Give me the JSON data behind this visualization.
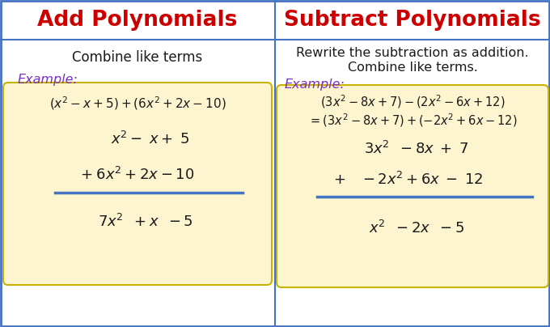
{
  "bg_color": "#ffffff",
  "divider_color": "#4472c4",
  "box_color": "#fdf5d0",
  "box_border_color": "#c8b400",
  "title_color": "#cc0000",
  "title_left": "Add Polynomials",
  "title_right": "Subtract Polynomials",
  "subtitle_color": "#1a1a1a",
  "subtitle_left": "Combine like terms",
  "subtitle_right_1": "Rewrite the subtraction as addition.",
  "subtitle_right_2": "Combine like terms.",
  "example_color": "#7b2fbe",
  "math_color": "#1a1a1a"
}
